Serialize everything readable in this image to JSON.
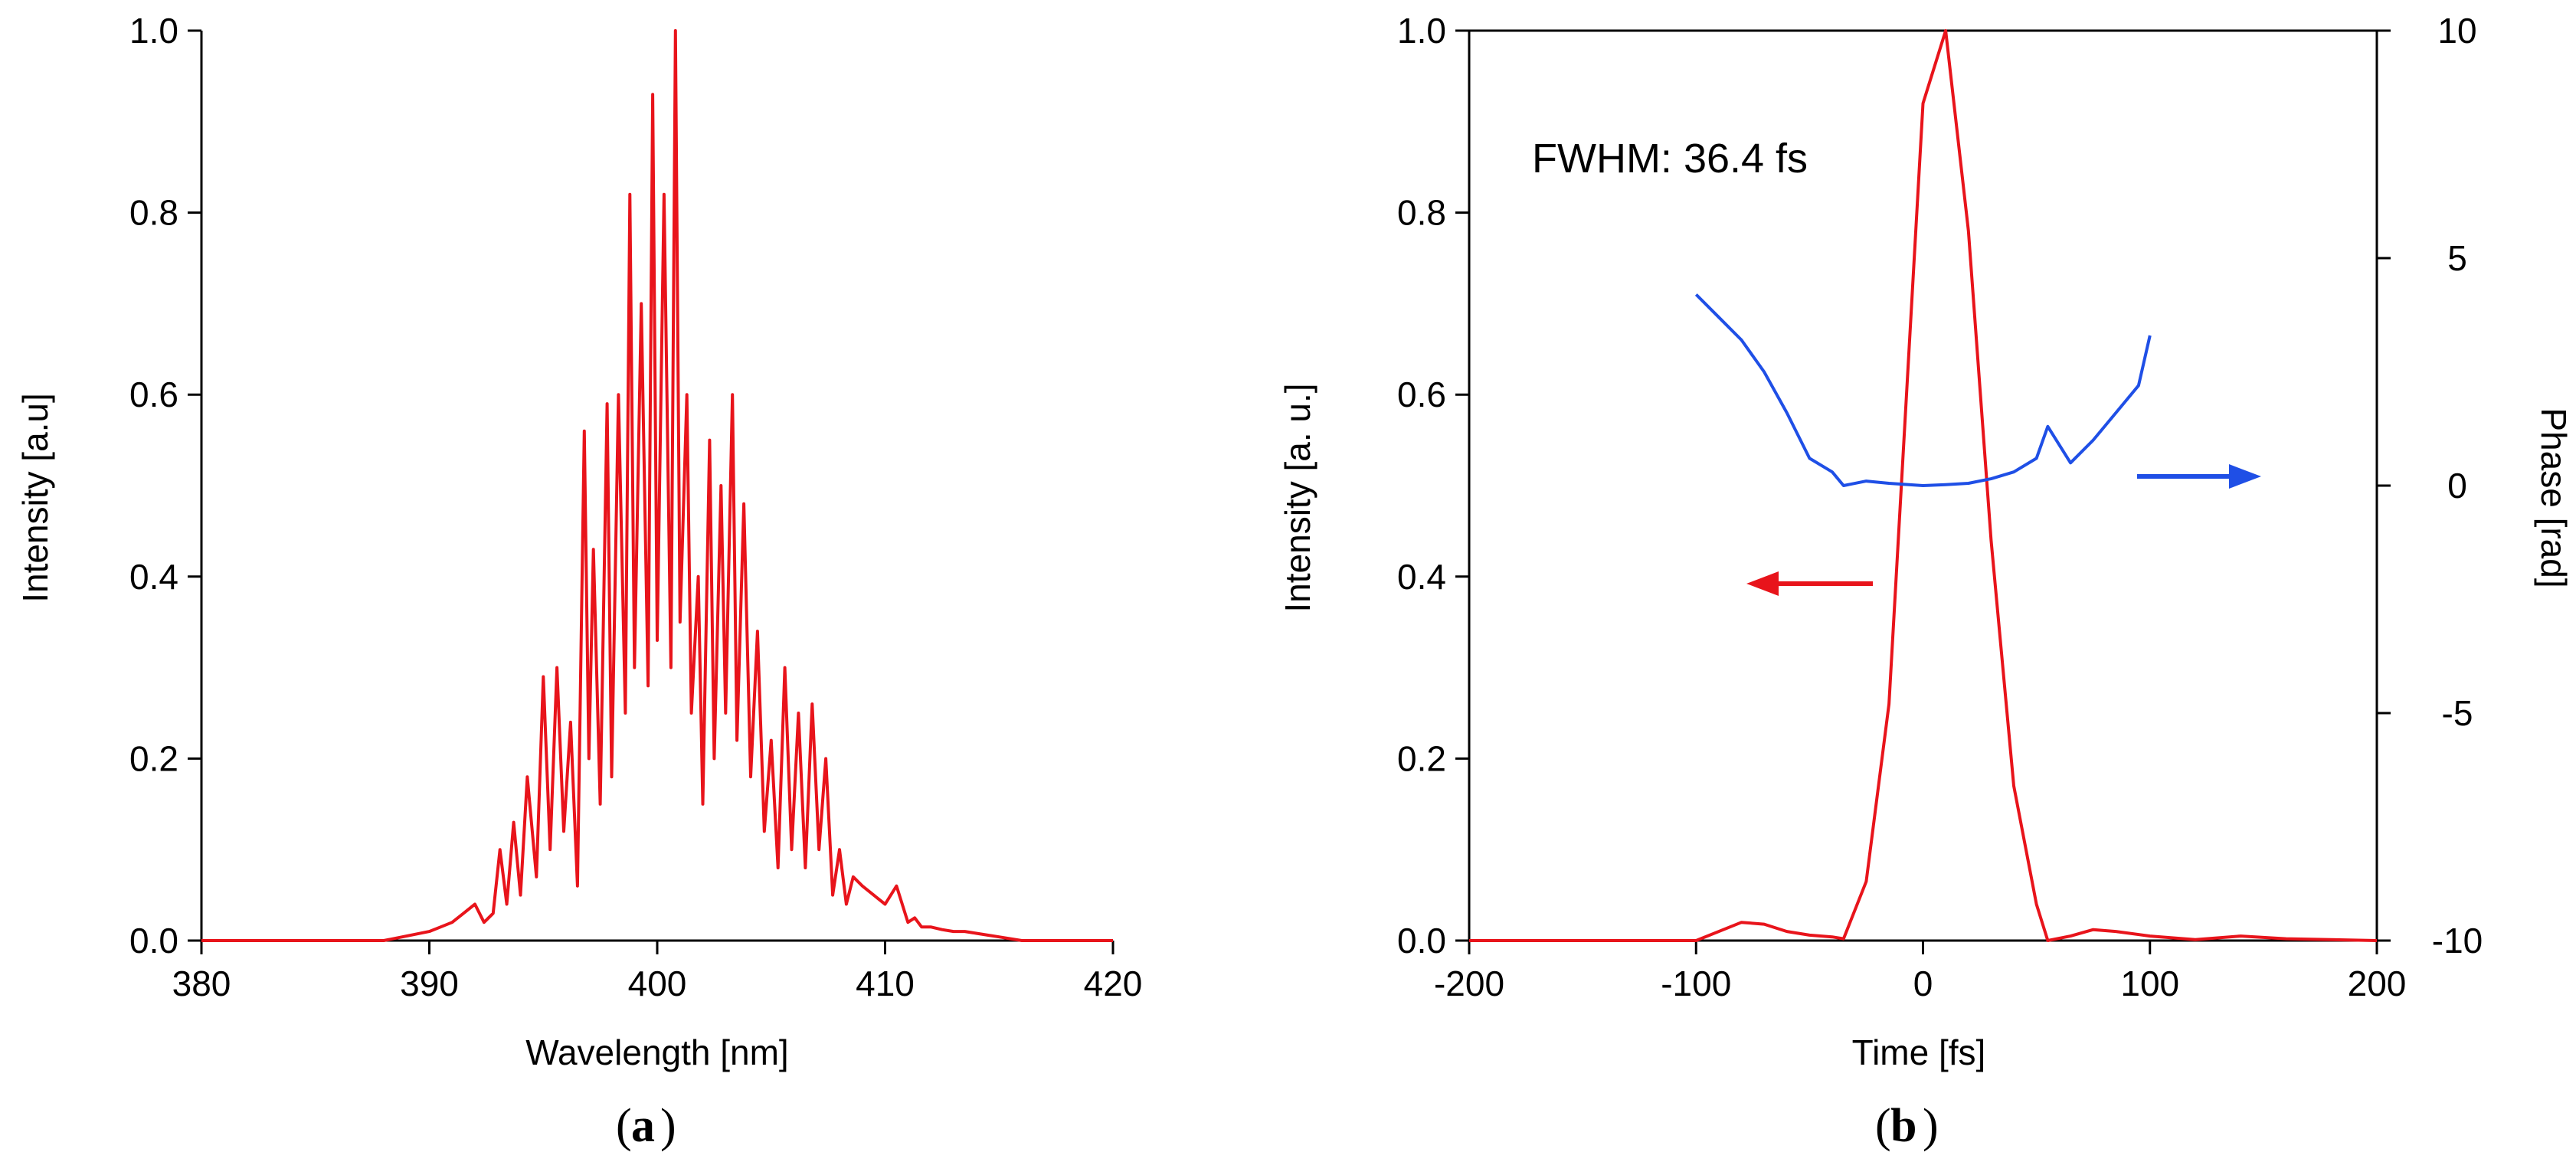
{
  "chart_data": [
    {
      "type": "line",
      "panel": "a",
      "caption_label": "a",
      "xlabel": "Wavelength [nm]",
      "ylabel": "Intensity [a.u]",
      "xlim": [
        380,
        420
      ],
      "ylim": [
        0,
        1.0
      ],
      "x_ticks": [
        380,
        390,
        400,
        410,
        420
      ],
      "x_tick_labels": [
        "380",
        "390",
        "400",
        "410",
        "420"
      ],
      "y_ticks": [
        0.0,
        0.2,
        0.4,
        0.6,
        0.8,
        1.0
      ],
      "y_tick_labels": [
        "0.0",
        "0.2",
        "0.4",
        "0.6",
        "0.8",
        "1.0"
      ],
      "color": "#e8141b",
      "series": [
        {
          "name": "spectrum",
          "x": [
            380,
            388,
            389,
            390,
            390.5,
            391,
            391.5,
            392,
            392.4,
            392.8,
            393.1,
            393.4,
            393.7,
            394.0,
            394.3,
            394.7,
            395.0,
            395.3,
            395.6,
            395.9,
            396.2,
            396.5,
            396.8,
            397.0,
            397.2,
            397.5,
            397.8,
            398.0,
            398.3,
            398.6,
            398.8,
            399.0,
            399.3,
            399.6,
            399.8,
            400.0,
            400.3,
            400.6,
            400.8,
            401.0,
            401.3,
            401.5,
            401.8,
            402.0,
            402.3,
            402.5,
            402.8,
            403.0,
            403.3,
            403.5,
            403.8,
            404.1,
            404.4,
            404.7,
            405.0,
            405.3,
            405.6,
            405.9,
            406.2,
            406.5,
            406.8,
            407.1,
            407.4,
            407.7,
            408.0,
            408.3,
            408.6,
            409.0,
            409.5,
            410.0,
            410.5,
            411.0,
            411.3,
            411.6,
            412.0,
            412.5,
            413.0,
            413.5,
            414.0,
            414.5,
            415.0,
            415.5,
            416,
            420
          ],
          "y": [
            0.0,
            0.0,
            0.005,
            0.01,
            0.015,
            0.02,
            0.03,
            0.04,
            0.02,
            0.03,
            0.1,
            0.04,
            0.13,
            0.05,
            0.18,
            0.07,
            0.29,
            0.1,
            0.3,
            0.12,
            0.24,
            0.06,
            0.56,
            0.2,
            0.43,
            0.15,
            0.59,
            0.18,
            0.6,
            0.25,
            0.82,
            0.3,
            0.7,
            0.28,
            0.93,
            0.33,
            0.82,
            0.3,
            1.0,
            0.35,
            0.6,
            0.25,
            0.4,
            0.15,
            0.55,
            0.2,
            0.5,
            0.25,
            0.6,
            0.22,
            0.48,
            0.18,
            0.34,
            0.12,
            0.22,
            0.08,
            0.3,
            0.1,
            0.25,
            0.08,
            0.26,
            0.1,
            0.2,
            0.05,
            0.1,
            0.04,
            0.07,
            0.06,
            0.05,
            0.04,
            0.06,
            0.02,
            0.025,
            0.015,
            0.015,
            0.012,
            0.01,
            0.01,
            0.008,
            0.006,
            0.004,
            0.002,
            0.0,
            0.0
          ]
        }
      ]
    },
    {
      "type": "line",
      "panel": "b",
      "caption_label": "b",
      "xlabel": "Time [fs]",
      "ylabel": "Intensity [a. u.]",
      "y2label": "Phase [rad]",
      "xlim": [
        -200,
        200
      ],
      "ylim": [
        0,
        1.0
      ],
      "y2lim": [
        -10,
        10
      ],
      "x_ticks": [
        -200,
        -100,
        0,
        100,
        200
      ],
      "x_tick_labels": [
        "-200",
        "-100",
        "0",
        "100",
        "200"
      ],
      "y_ticks": [
        0.0,
        0.2,
        0.4,
        0.6,
        0.8,
        1.0
      ],
      "y_tick_labels": [
        "0.0",
        "0.2",
        "0.4",
        "0.6",
        "0.8",
        "1.0"
      ],
      "y2_ticks": [
        -10,
        -5,
        0,
        5,
        10
      ],
      "y2_tick_labels": [
        "-10",
        "-5",
        "0",
        "5",
        "10"
      ],
      "annotation": "FWHM: 36.4 fs",
      "intensity_color": "#e8141b",
      "phase_color": "#1f4fe6",
      "series": [
        {
          "name": "intensity",
          "axis": "left",
          "x": [
            -200,
            -100,
            -80,
            -70,
            -60,
            -50,
            -40,
            -35,
            -25,
            -15,
            0,
            10,
            20,
            30,
            40,
            50,
            55,
            65,
            75,
            85,
            100,
            120,
            140,
            160,
            200
          ],
          "y": [
            0.0,
            0.0,
            0.02,
            0.018,
            0.01,
            0.006,
            0.004,
            0.002,
            0.065,
            0.26,
            0.92,
            1.0,
            0.78,
            0.44,
            0.17,
            0.04,
            0.0,
            0.005,
            0.012,
            0.01,
            0.005,
            0.001,
            0.005,
            0.002,
            0.0
          ]
        },
        {
          "name": "phase",
          "axis": "right",
          "x": [
            -100,
            -90,
            -80,
            -70,
            -60,
            -50,
            -40,
            -35,
            -25,
            -15,
            0,
            10,
            20,
            30,
            40,
            50,
            55,
            65,
            75,
            85,
            95,
            100
          ],
          "y": [
            4.2,
            3.7,
            3.2,
            2.5,
            1.6,
            0.6,
            0.3,
            0.0,
            0.1,
            0.05,
            0.0,
            0.02,
            0.05,
            0.15,
            0.3,
            0.6,
            1.3,
            0.5,
            1.0,
            1.6,
            2.2,
            3.3
          ]
        }
      ]
    }
  ]
}
